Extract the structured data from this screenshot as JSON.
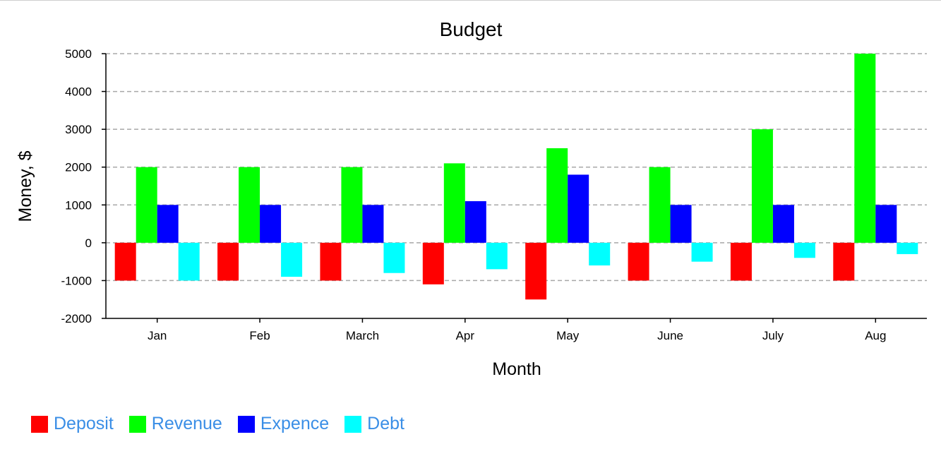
{
  "chart_data": {
    "type": "bar",
    "title": "Budget",
    "xlabel": "Month",
    "ylabel": "Money, $",
    "ylim": [
      -2000,
      5000
    ],
    "yticks": [
      5000,
      4000,
      3000,
      2000,
      1000,
      0,
      -1000,
      -2000
    ],
    "grid": true,
    "legend_position": "bottom-left",
    "categories": [
      "Jan",
      "Feb",
      "March",
      "Apr",
      "May",
      "June",
      "July",
      "Aug"
    ],
    "series": [
      {
        "name": "Deposit",
        "color": "#ff0000",
        "values": [
          -1000,
          -1000,
          -1000,
          -1100,
          -1500,
          -1000,
          -1000,
          -1000
        ]
      },
      {
        "name": "Revenue",
        "color": "#00ff00",
        "values": [
          2000,
          2000,
          2000,
          2100,
          2500,
          2000,
          3000,
          5000
        ]
      },
      {
        "name": "Expence",
        "color": "#0000ff",
        "values": [
          1000,
          1000,
          1000,
          1100,
          1800,
          1000,
          1000,
          1000
        ]
      },
      {
        "name": "Debt",
        "color": "#00ffff",
        "values": [
          -1000,
          -900,
          -800,
          -700,
          -600,
          -500,
          -400,
          -300
        ]
      }
    ]
  },
  "legend": {
    "text_color": "#3a8ee6"
  }
}
